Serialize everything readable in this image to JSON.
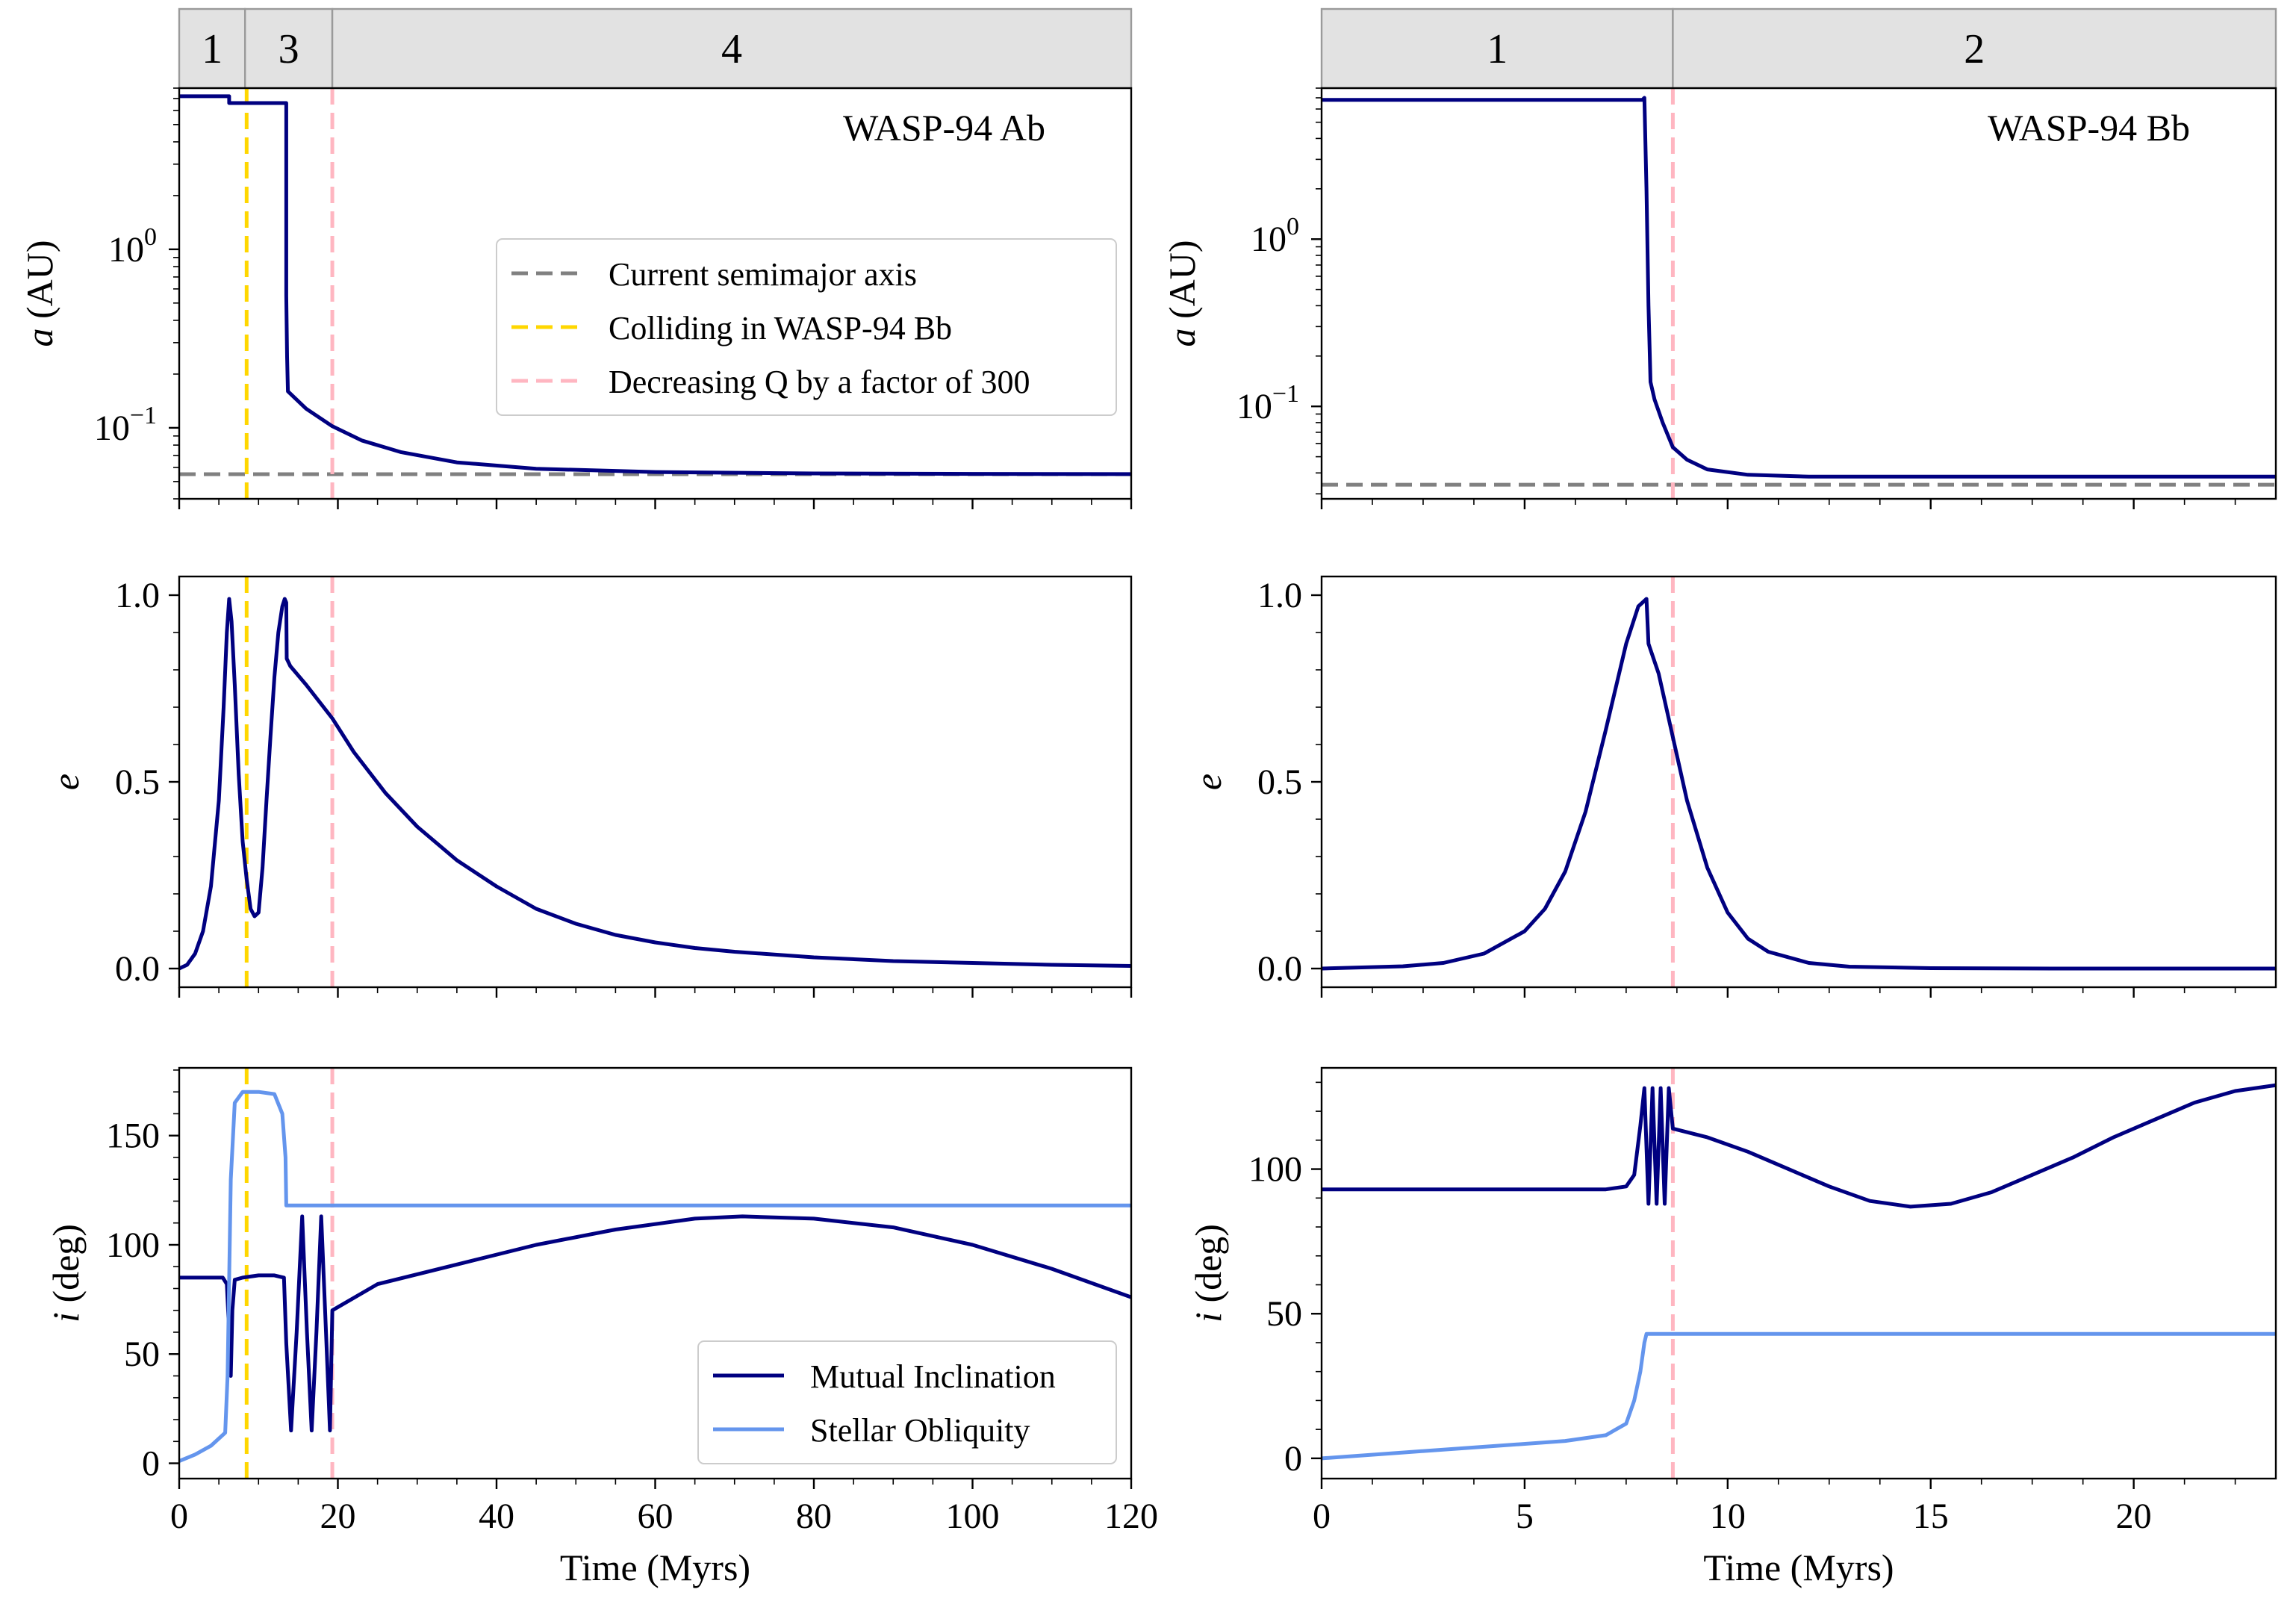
{
  "chart_data": [
    {
      "id": "ab_a",
      "type": "line",
      "title": "WASP-94 Ab",
      "xlabel": "",
      "ylabel": "a (AU)",
      "ylabel_italic": "a",
      "ylabel_rest": " (AU)",
      "yscale": "log",
      "xlim": [
        0,
        120
      ],
      "ylim": [
        0.04,
        8.0
      ],
      "xticks": [
        0,
        20,
        40,
        60,
        80,
        100,
        120
      ],
      "ytick_labels": [
        {
          "value": 1,
          "label": "10",
          "exp": "0"
        },
        {
          "value": 0.1,
          "label": "10",
          "exp": "−1"
        }
      ],
      "phases": [
        {
          "label": "1",
          "from": 0,
          "to": 8.3
        },
        {
          "label": "3",
          "from": 8.3,
          "to": 19.3
        },
        {
          "label": "4",
          "from": 19.3,
          "to": 120
        }
      ],
      "vlines": [
        {
          "x": 8.5,
          "color": "#ffd700"
        },
        {
          "x": 19.3,
          "color": "#ffb6c1"
        }
      ],
      "hlines": [
        {
          "y": 0.055,
          "color": "#808080"
        }
      ],
      "series": [
        {
          "color": "#000080",
          "x": [
            0,
            6.3,
            6.3,
            13.5,
            13.5,
            13.6,
            13.7,
            16,
            19.3,
            23,
            28,
            35,
            45,
            60,
            80,
            100,
            120
          ],
          "y": [
            7.2,
            7.2,
            6.6,
            6.6,
            0.55,
            0.25,
            0.16,
            0.128,
            0.102,
            0.085,
            0.073,
            0.064,
            0.059,
            0.0565,
            0.0555,
            0.0552,
            0.055
          ]
        }
      ],
      "legend": {
        "placement": "center-right",
        "entries": [
          {
            "label": "Current semimajor axis",
            "color": "#808080"
          },
          {
            "label": "Colliding in WASP-94 Bb",
            "color": "#ffd700"
          },
          {
            "label": "Decreasing Q by a factor of 300",
            "color": "#ffb6c1"
          }
        ]
      }
    },
    {
      "id": "ab_e",
      "type": "line",
      "xlabel": "",
      "ylabel": "e",
      "ylabel_italic": "e",
      "ylabel_rest": "",
      "xlim": [
        0,
        120
      ],
      "ylim": [
        -0.05,
        1.05
      ],
      "xticks": [
        0,
        20,
        40,
        60,
        80,
        100,
        120
      ],
      "yticks": [
        0.0,
        0.5,
        1.0
      ],
      "ytick_labels": [
        "0.0",
        "0.5",
        "1.0"
      ],
      "vlines": [
        {
          "x": 8.5,
          "color": "#ffd700"
        },
        {
          "x": 19.3,
          "color": "#ffb6c1"
        }
      ],
      "series": [
        {
          "color": "#000080",
          "x": [
            0,
            1,
            2,
            3,
            4,
            5,
            5.6,
            6.0,
            6.3,
            6.6,
            7.0,
            7.5,
            8.0,
            8.5,
            9.0,
            9.5,
            10.0,
            10.5,
            11.0,
            11.5,
            12.0,
            12.5,
            13.0,
            13.3,
            13.5,
            13.55,
            14,
            16,
            19.3,
            22,
            26,
            30,
            35,
            40,
            45,
            50,
            55,
            60,
            65,
            70,
            80,
            90,
            100,
            110,
            120
          ],
          "y": [
            0,
            0.01,
            0.04,
            0.1,
            0.22,
            0.45,
            0.7,
            0.9,
            0.99,
            0.93,
            0.76,
            0.52,
            0.34,
            0.24,
            0.16,
            0.14,
            0.15,
            0.27,
            0.45,
            0.62,
            0.78,
            0.9,
            0.97,
            0.99,
            0.98,
            0.83,
            0.81,
            0.76,
            0.67,
            0.58,
            0.47,
            0.38,
            0.29,
            0.22,
            0.16,
            0.12,
            0.09,
            0.07,
            0.055,
            0.045,
            0.03,
            0.02,
            0.015,
            0.01,
            0.007
          ]
        }
      ]
    },
    {
      "id": "ab_i",
      "type": "line",
      "xlabel": "Time (Myrs)",
      "ylabel": "i (deg)",
      "ylabel_italic": "i",
      "ylabel_rest": " (deg)",
      "xlim": [
        0,
        120
      ],
      "ylim": [
        -7,
        181
      ],
      "xticks": [
        0,
        20,
        40,
        60,
        80,
        100,
        120
      ],
      "yticks": [
        0,
        50,
        100,
        150
      ],
      "vlines": [
        {
          "x": 8.5,
          "color": "#ffd700"
        },
        {
          "x": 19.3,
          "color": "#ffb6c1"
        }
      ],
      "series": [
        {
          "name": "Mutual Inclination",
          "color": "#000080",
          "x": [
            0,
            5.5,
            6.0,
            6.3,
            6.5,
            6.7,
            7.0,
            8.0,
            10,
            12,
            13.2,
            13.5,
            14.1,
            14.8,
            15.5,
            16.1,
            16.7,
            17.3,
            17.9,
            18.5,
            19.0,
            19.3,
            25,
            35,
            45,
            55,
            65,
            71,
            80,
            90,
            100,
            110,
            120
          ],
          "y": [
            85,
            85,
            82,
            60,
            40,
            70,
            84,
            85,
            86,
            86,
            85,
            55,
            15,
            60,
            113,
            60,
            15,
            60,
            113,
            60,
            15,
            70,
            82,
            91,
            100,
            107,
            112,
            113,
            112,
            108,
            100,
            89,
            76
          ]
        },
        {
          "name": "Stellar Obliquity",
          "color": "#6495ed",
          "x": [
            0,
            2,
            4,
            5.8,
            6.1,
            6.5,
            7.0,
            8.0,
            10,
            12,
            13.0,
            13.4,
            13.5,
            20,
            120
          ],
          "y": [
            1,
            4,
            8,
            14,
            40,
            130,
            165,
            170,
            170,
            169,
            160,
            140,
            118,
            118,
            118
          ]
        }
      ],
      "legend": {
        "placement": "lower-right",
        "entries": [
          {
            "label": "Mutual Inclination",
            "color": "#000080"
          },
          {
            "label": "Stellar Obliquity",
            "color": "#6495ed"
          }
        ]
      }
    },
    {
      "id": "bb_a",
      "type": "line",
      "title": "WASP-94 Bb",
      "xlabel": "",
      "ylabel": "a (AU)",
      "ylabel_italic": "a",
      "ylabel_rest": " (AU)",
      "yscale": "log",
      "xlim": [
        0,
        23.5
      ],
      "ylim": [
        0.028,
        8.0
      ],
      "xticks": [
        0,
        5,
        10,
        15,
        20
      ],
      "ytick_labels": [
        {
          "value": 1,
          "label": "10",
          "exp": "0"
        },
        {
          "value": 0.1,
          "label": "10",
          "exp": "−1"
        }
      ],
      "phases": [
        {
          "label": "1",
          "from": 0,
          "to": 8.65
        },
        {
          "label": "2",
          "from": 8.65,
          "to": 23.5
        }
      ],
      "vlines": [
        {
          "x": 8.65,
          "color": "#ffb6c1"
        }
      ],
      "hlines": [
        {
          "y": 0.034,
          "color": "#808080"
        }
      ],
      "series": [
        {
          "color": "#000080",
          "x": [
            0,
            7.9,
            7.95,
            8.0,
            8.05,
            8.1,
            8.2,
            8.4,
            8.65,
            9.0,
            9.5,
            10.5,
            12,
            15,
            20,
            23.5
          ],
          "y": [
            6.8,
            6.8,
            7.0,
            2.0,
            0.4,
            0.14,
            0.11,
            0.08,
            0.057,
            0.048,
            0.042,
            0.039,
            0.038,
            0.038,
            0.038,
            0.038
          ]
        }
      ]
    },
    {
      "id": "bb_e",
      "type": "line",
      "xlabel": "",
      "ylabel": "e",
      "ylabel_italic": "e",
      "ylabel_rest": "",
      "xlim": [
        0,
        23.5
      ],
      "ylim": [
        -0.05,
        1.05
      ],
      "xticks": [
        0,
        5,
        10,
        15,
        20
      ],
      "yticks": [
        0.0,
        0.5,
        1.0
      ],
      "ytick_labels": [
        "0.0",
        "0.5",
        "1.0"
      ],
      "vlines": [
        {
          "x": 8.65,
          "color": "#ffb6c1"
        }
      ],
      "series": [
        {
          "color": "#000080",
          "x": [
            0,
            2,
            3,
            4,
            5,
            5.5,
            6,
            6.5,
            7,
            7.5,
            7.8,
            8.0,
            8.05,
            8.3,
            8.65,
            9.0,
            9.5,
            10,
            10.5,
            11,
            12,
            13,
            15,
            18,
            23.5
          ],
          "y": [
            0,
            0.006,
            0.015,
            0.04,
            0.1,
            0.16,
            0.26,
            0.42,
            0.64,
            0.87,
            0.97,
            0.99,
            0.87,
            0.79,
            0.62,
            0.45,
            0.27,
            0.15,
            0.08,
            0.045,
            0.015,
            0.005,
            0.001,
            0,
            0
          ]
        }
      ]
    },
    {
      "id": "bb_i",
      "type": "line",
      "xlabel": "Time (Myrs)",
      "ylabel": "i (deg)",
      "ylabel_italic": "i",
      "ylabel_rest": " (deg)",
      "xlim": [
        0,
        23.5
      ],
      "ylim": [
        -7,
        135
      ],
      "xticks": [
        0,
        5,
        10,
        15,
        20
      ],
      "yticks": [
        0,
        50,
        100
      ],
      "vlines": [
        {
          "x": 8.65,
          "color": "#ffb6c1"
        }
      ],
      "series": [
        {
          "name": "Mutual Inclination",
          "color": "#000080",
          "x": [
            0,
            7.0,
            7.5,
            7.7,
            7.85,
            7.95,
            8.05,
            8.15,
            8.25,
            8.35,
            8.45,
            8.55,
            8.65,
            9.5,
            10.5,
            11.5,
            12.5,
            13.5,
            14.5,
            15.5,
            16.5,
            17.5,
            18.5,
            19.5,
            20.5,
            21.5,
            22.5,
            23.5
          ],
          "y": [
            93,
            93,
            94,
            98,
            115,
            128,
            88,
            128,
            88,
            128,
            88,
            128,
            114,
            111,
            106,
            100,
            94,
            89,
            87,
            88,
            92,
            98,
            104,
            111,
            117,
            123,
            127,
            129
          ]
        },
        {
          "name": "Stellar Obliquity",
          "color": "#6495ed",
          "x": [
            0,
            2,
            4,
            6,
            7.0,
            7.5,
            7.7,
            7.85,
            7.95,
            8.0,
            10,
            23.5
          ],
          "y": [
            0,
            2,
            4,
            6,
            8,
            12,
            20,
            30,
            40,
            43,
            43,
            43
          ]
        }
      ]
    }
  ]
}
